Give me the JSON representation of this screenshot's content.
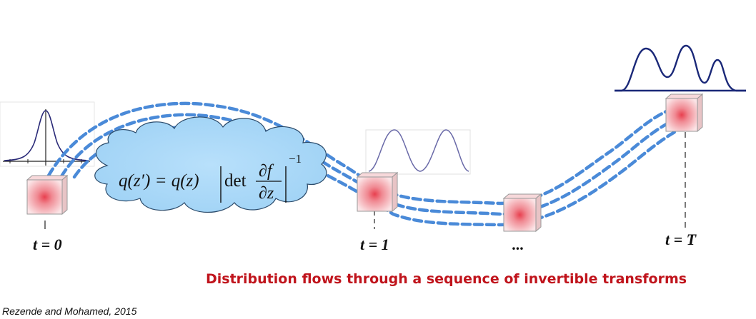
{
  "equation": {
    "lhs": "q(z′) = q(z)",
    "det": "det",
    "numerator": "∂f",
    "denominator": "∂z",
    "exponent": "−1"
  },
  "time_labels": {
    "t0": "t = 0",
    "t1": "t = 1",
    "ellipsis": "...",
    "tT": "t = T"
  },
  "caption": "Distribution flows through a sequence of invertible transforms",
  "citation": "Rezende and Mohamed, 2015",
  "colors": {
    "flow_lines": "#4a8ad8",
    "cloud_fill": "#a9d8f8",
    "caption": "#c0141c",
    "density_dark": "#1a2878",
    "density_light": "#6a6aa8"
  }
}
